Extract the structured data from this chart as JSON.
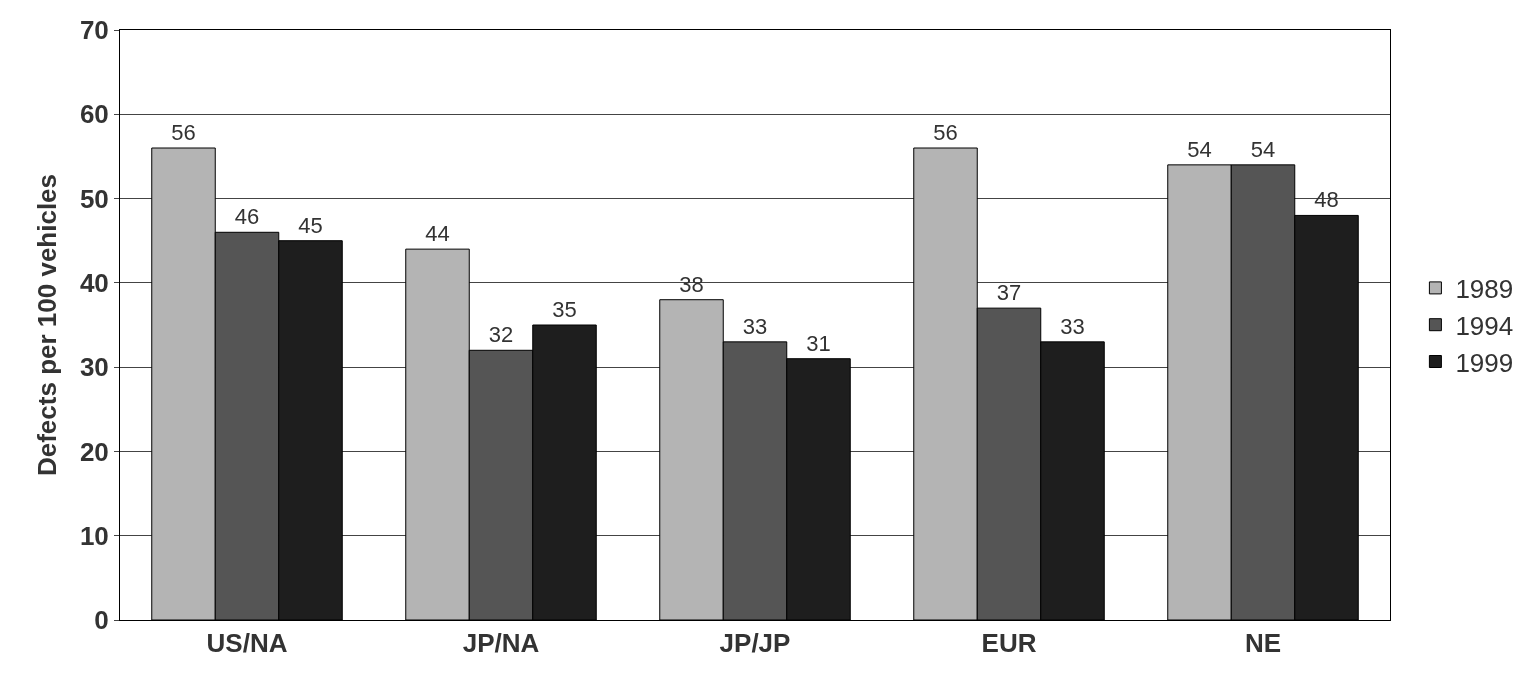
{
  "chart_data": {
    "type": "bar",
    "ylabel": "Defects per 100 vehicles",
    "categories": [
      "US/NA",
      "JP/NA",
      "JP/JP",
      "EUR",
      "NE"
    ],
    "series": [
      {
        "name": "1989",
        "color": "#b4b4b4",
        "values": [
          56,
          44,
          38,
          56,
          54
        ]
      },
      {
        "name": "1994",
        "color": "#555555",
        "values": [
          46,
          32,
          33,
          37,
          54
        ]
      },
      {
        "name": "1999",
        "color": "#1e1e1e",
        "values": [
          45,
          35,
          31,
          33,
          48
        ]
      }
    ],
    "ylim": [
      0,
      70
    ],
    "yticks": [
      0,
      10,
      20,
      30,
      40,
      50,
      60,
      70
    ],
    "grid": "y",
    "legend": "right",
    "data_labels": true
  }
}
